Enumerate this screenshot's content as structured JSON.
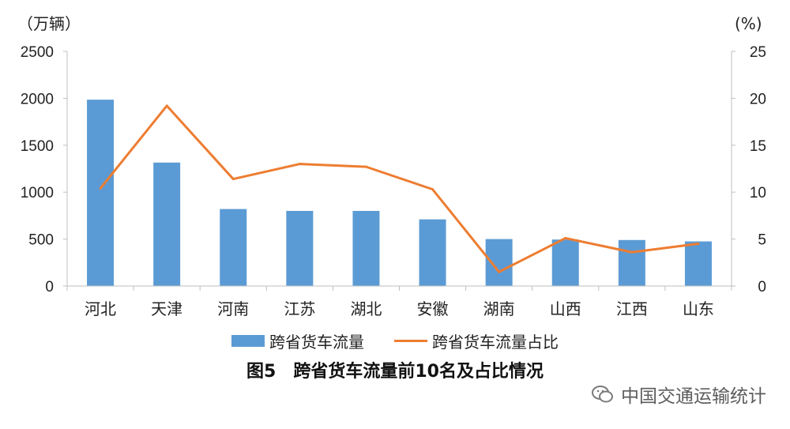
{
  "units": {
    "left": "（万辆）",
    "right": "(%)"
  },
  "caption": "图5　跨省货车流量前10名及占比情况",
  "watermark": "中国交通运输统计",
  "colors": {
    "bar": "#5b9bd5",
    "line": "#ed7d31",
    "axis": "#bfbfbf"
  },
  "chart_data": {
    "type": "bar",
    "categories": [
      "河北",
      "天津",
      "河南",
      "江苏",
      "湖北",
      "安徽",
      "湖南",
      "山西",
      "江西",
      "山东"
    ],
    "series": [
      {
        "name": "跨省货车流量",
        "type": "bar",
        "axis": "left",
        "values": [
          1985,
          1315,
          820,
          800,
          800,
          710,
          500,
          495,
          490,
          475
        ]
      },
      {
        "name": "跨省货车流量占比",
        "type": "line",
        "axis": "right",
        "values": [
          10.4,
          19.2,
          11.4,
          13.0,
          12.7,
          10.3,
          1.5,
          5.1,
          3.6,
          4.5
        ]
      }
    ],
    "y_left": {
      "min": 0,
      "max": 2500,
      "ticks": [
        "0",
        "500",
        "1000",
        "1500",
        "2000",
        "2500"
      ]
    },
    "y_right": {
      "min": 0,
      "max": 25,
      "ticks": [
        "0",
        "5",
        "10",
        "15",
        "20",
        "25"
      ]
    },
    "legend_position": "bottom",
    "grid": false
  }
}
